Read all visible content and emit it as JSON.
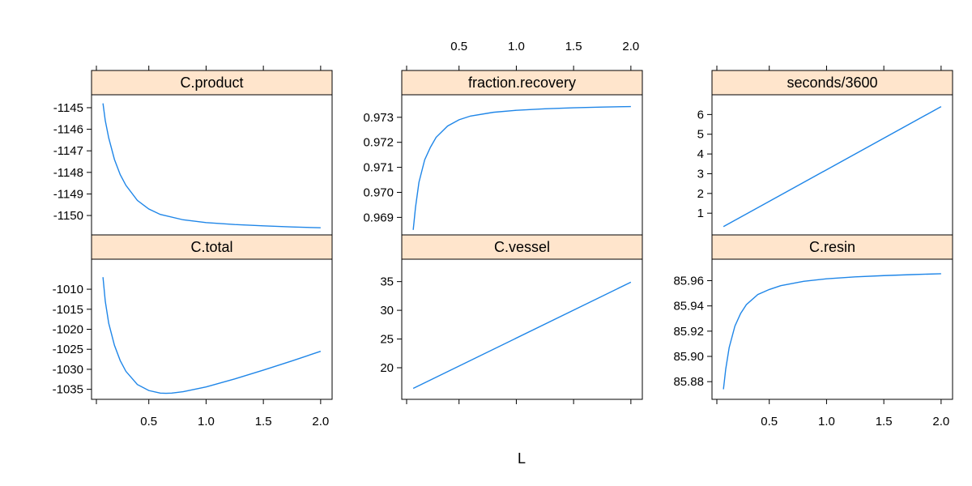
{
  "chart_data": {
    "type": "line",
    "layout": "lattice 3 columns x 2 rows, shared x-axis, free y-axes",
    "xlabel": "L",
    "xlim": [
      0,
      2.1
    ],
    "x_ticks": [
      0.5,
      1.0,
      1.5,
      2.0
    ],
    "x_tick_labels": [
      "0.5",
      "1.0",
      "1.5",
      "2.0"
    ],
    "line_color": "#1f86e8",
    "strip_color": "#ffe5cc",
    "grid": false,
    "panels": [
      {
        "id": "c-product",
        "title": "C.product",
        "ylim": [
          -1150.9,
          -1144.4
        ],
        "y_ticks": [
          -1145,
          -1146,
          -1147,
          -1148,
          -1149,
          -1150
        ],
        "y_tick_labels": [
          "-1145",
          "-1146",
          "-1147",
          "-1148",
          "-1149",
          "-1150"
        ],
        "x": [
          0.1,
          0.12,
          0.15,
          0.2,
          0.25,
          0.3,
          0.4,
          0.5,
          0.6,
          0.8,
          1.0,
          1.25,
          1.5,
          1.75,
          2.0
        ],
        "y": [
          -1144.8,
          -1145.6,
          -1146.4,
          -1147.4,
          -1148.1,
          -1148.6,
          -1149.3,
          -1149.7,
          -1149.95,
          -1150.2,
          -1150.33,
          -1150.42,
          -1150.48,
          -1150.53,
          -1150.57
        ]
      },
      {
        "id": "fraction-recovery",
        "title": "fraction.recovery",
        "ylim": [
          0.9683,
          0.9739
        ],
        "y_ticks": [
          0.969,
          0.97,
          0.971,
          0.972,
          0.973
        ],
        "y_tick_labels": [
          "0.969",
          "0.970",
          "0.971",
          "0.972",
          "0.973"
        ],
        "x": [
          0.1,
          0.12,
          0.15,
          0.2,
          0.25,
          0.3,
          0.4,
          0.5,
          0.6,
          0.8,
          1.0,
          1.25,
          1.5,
          1.75,
          2.0
        ],
        "y": [
          0.9685,
          0.9694,
          0.9704,
          0.9713,
          0.9718,
          0.9722,
          0.97265,
          0.9729,
          0.97305,
          0.9732,
          0.97328,
          0.97334,
          0.97338,
          0.97341,
          0.97343
        ]
      },
      {
        "id": "seconds-3600",
        "title": "seconds/3600",
        "ylim": [
          -0.1,
          7.0
        ],
        "y_ticks": [
          1,
          2,
          3,
          4,
          5,
          6
        ],
        "y_tick_labels": [
          "1",
          "2",
          "3",
          "4",
          "5",
          "6"
        ],
        "x": [
          0.1,
          2.0
        ],
        "y": [
          0.32,
          6.4
        ]
      },
      {
        "id": "c-total",
        "title": "C.total",
        "ylim": [
          -1037.5,
          -1002.5
        ],
        "y_ticks": [
          -1010,
          -1015,
          -1020,
          -1025,
          -1030,
          -1035
        ],
        "y_tick_labels": [
          "-1010",
          "-1015",
          "-1020",
          "-1025",
          "-1030",
          "-1035"
        ],
        "x": [
          0.1,
          0.12,
          0.15,
          0.2,
          0.25,
          0.3,
          0.4,
          0.5,
          0.6,
          0.65,
          0.7,
          0.8,
          1.0,
          1.25,
          1.5,
          1.75,
          2.0
        ],
        "y": [
          -1007,
          -1013,
          -1018.5,
          -1024,
          -1027.8,
          -1030.5,
          -1033.8,
          -1035.3,
          -1035.95,
          -1036.0,
          -1035.95,
          -1035.6,
          -1034.4,
          -1032.4,
          -1030.2,
          -1027.9,
          -1025.5
        ]
      },
      {
        "id": "c-vessel",
        "title": "C.vessel",
        "ylim": [
          14.5,
          38.9
        ],
        "y_ticks": [
          20,
          25,
          30,
          35
        ],
        "y_tick_labels": [
          "20",
          "25",
          "30",
          "35"
        ],
        "x": [
          0.1,
          2.0
        ],
        "y": [
          16.4,
          34.9
        ]
      },
      {
        "id": "c-resin",
        "title": "C.resin",
        "ylim": [
          85.866,
          85.977
        ],
        "y_ticks": [
          85.88,
          85.9,
          85.92,
          85.94,
          85.96
        ],
        "y_tick_labels": [
          "85.88",
          "85.90",
          "85.92",
          "85.94",
          "85.96"
        ],
        "x": [
          0.1,
          0.12,
          0.15,
          0.2,
          0.25,
          0.3,
          0.4,
          0.5,
          0.6,
          0.8,
          1.0,
          1.25,
          1.5,
          1.75,
          2.0
        ],
        "y": [
          85.874,
          85.89,
          85.907,
          85.924,
          85.934,
          85.941,
          85.949,
          85.953,
          85.956,
          85.9595,
          85.9615,
          85.963,
          85.964,
          85.9648,
          85.9655
        ]
      }
    ]
  }
}
